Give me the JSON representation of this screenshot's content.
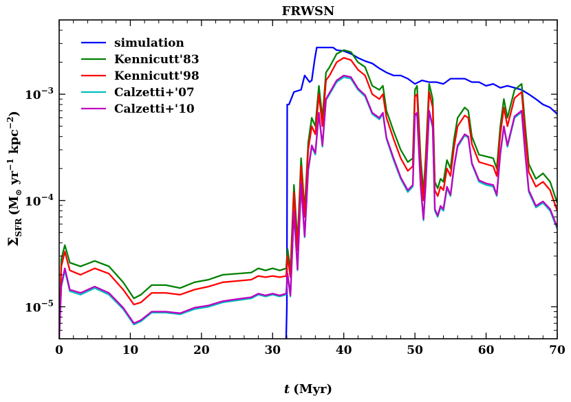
{
  "chart_data": {
    "type": "line",
    "title": "FRWSN",
    "xlabel_var": "t",
    "xlabel_unit": "(Myr)",
    "ylabel": "Σ_SFR (M⊙ yr⁻¹ kpc⁻²)",
    "ylabel_main": "Σ",
    "ylabel_sub": "SFR",
    "ylabel_unit_open": "(M",
    "ylabel_unit_sun": "⊙",
    "ylabel_unit_yr": " yr",
    "ylabel_unit_exp1": "−1",
    "ylabel_unit_kpc": " kpc",
    "ylabel_unit_exp2": "−2",
    "ylabel_unit_close": ")",
    "xscale": "linear",
    "yscale": "log",
    "xlim": [
      0,
      70
    ],
    "ylim": [
      5e-06,
      0.005
    ],
    "x_ticks": [
      0,
      10,
      20,
      30,
      40,
      50,
      60,
      70
    ],
    "x_tick_labels": [
      "0",
      "10",
      "20",
      "30",
      "40",
      "50",
      "60",
      "70"
    ],
    "y_ticks": [
      1e-05,
      0.0001,
      0.001
    ],
    "y_tick_base": "10",
    "y_tick_exps": [
      "−5",
      "−4",
      "−3"
    ],
    "legend_position": "top-left",
    "series": [
      {
        "name": "simulation",
        "color": "#0000ff",
        "x": [
          31.9,
          32.0,
          32.05,
          32.3,
          33.0,
          34.0,
          34.5,
          35.2,
          35.5,
          35.9,
          36.2,
          37.5,
          38.5,
          39.0,
          40.0,
          41.0,
          42.0,
          43.0,
          44.0,
          45.0,
          46.0,
          47.0,
          48.0,
          49.0,
          50.0,
          51.0,
          52.0,
          53.0,
          54.0,
          55.0,
          56.0,
          57.0,
          58.0,
          59.0,
          60.0,
          61.0,
          62.0,
          63.0,
          64.0,
          65.0,
          66.0,
          67.0,
          68.0,
          69.0,
          70.0
        ],
        "y": [
          5e-06,
          1e-05,
          0.0008,
          0.0008,
          0.00105,
          0.0011,
          0.0015,
          0.0013,
          0.00135,
          0.0021,
          0.00275,
          0.00275,
          0.00275,
          0.0026,
          0.00255,
          0.0024,
          0.0022,
          0.00205,
          0.00195,
          0.00175,
          0.0016,
          0.0015,
          0.0015,
          0.0014,
          0.00125,
          0.00135,
          0.0013,
          0.0013,
          0.00125,
          0.0014,
          0.0014,
          0.0014,
          0.0013,
          0.0013,
          0.0012,
          0.00125,
          0.00115,
          0.0012,
          0.00115,
          0.0011,
          0.001,
          0.0009,
          0.0008,
          0.00075,
          0.00065
        ]
      },
      {
        "name": "Kennicutt'83",
        "color": "#008000",
        "x": [
          0.0,
          0.3,
          0.8,
          1.5,
          3.0,
          5.0,
          7.0,
          9.0,
          10.5,
          11.5,
          13.0,
          15.0,
          17.0,
          19.0,
          21.0,
          23.0,
          25.0,
          27.0,
          28.0,
          29.0,
          30.0,
          31.0,
          31.9,
          32.1,
          32.5,
          33.0,
          33.5,
          34.0,
          34.5,
          35.0,
          35.5,
          36.0,
          36.5,
          37.0,
          37.5,
          38.0,
          39.0,
          40.0,
          41.0,
          42.0,
          43.0,
          44.0,
          45.0,
          45.5,
          46.0,
          47.0,
          48.0,
          49.0,
          49.7,
          50.0,
          50.3,
          50.8,
          51.2,
          51.5,
          52.0,
          52.5,
          52.8,
          53.2,
          53.6,
          54.0,
          54.5,
          55.0,
          55.5,
          56.0,
          57.0,
          57.5,
          58.0,
          59.0,
          60.0,
          61.0,
          61.5,
          62.0,
          62.5,
          63.0,
          64.0,
          65.0,
          65.5,
          66.0,
          67.0,
          68.0,
          69.0,
          70.0
        ],
        "y": [
          5e-06,
          2.8e-05,
          3.8e-05,
          2.6e-05,
          2.4e-05,
          2.7e-05,
          2.4e-05,
          1.7e-05,
          1.2e-05,
          1.3e-05,
          1.6e-05,
          1.6e-05,
          1.5e-05,
          1.7e-05,
          1.8e-05,
          2e-05,
          2.05e-05,
          2.1e-05,
          2.3e-05,
          2.2e-05,
          2.3e-05,
          2.2e-05,
          2.3e-05,
          3.5e-05,
          2.2e-05,
          0.00014,
          4e-05,
          0.00025,
          8e-05,
          0.00035,
          0.0006,
          0.0005,
          0.0012,
          0.0006,
          0.0016,
          0.0018,
          0.0024,
          0.0026,
          0.0025,
          0.002,
          0.0018,
          0.0012,
          0.0011,
          0.0012,
          0.0007,
          0.00045,
          0.0003,
          0.00023,
          0.00025,
          0.0011,
          0.0012,
          0.00025,
          0.00012,
          0.00025,
          0.00125,
          0.0009,
          0.00015,
          0.00013,
          0.00016,
          0.00015,
          0.00024,
          0.0002,
          0.00038,
          0.0006,
          0.00075,
          0.0007,
          0.0004,
          0.00027,
          0.00026,
          0.00025,
          0.0002,
          0.0005,
          0.0009,
          0.0006,
          0.0011,
          0.00125,
          0.0005,
          0.00022,
          0.00016,
          0.00018,
          0.00015,
          9.5e-05
        ]
      },
      {
        "name": "Kennicutt'98",
        "color": "#ff0000",
        "x": [
          0.0,
          0.3,
          0.8,
          1.5,
          3.0,
          5.0,
          7.0,
          9.0,
          10.5,
          11.5,
          13.0,
          15.0,
          17.0,
          19.0,
          21.0,
          23.0,
          25.0,
          27.0,
          28.0,
          29.0,
          30.0,
          31.0,
          31.9,
          32.1,
          32.5,
          33.0,
          33.5,
          34.0,
          34.5,
          35.0,
          35.5,
          36.0,
          36.5,
          37.0,
          37.5,
          38.0,
          39.0,
          40.0,
          41.0,
          42.0,
          43.0,
          44.0,
          45.0,
          45.5,
          46.0,
          47.0,
          48.0,
          49.0,
          49.7,
          50.0,
          50.3,
          50.8,
          51.2,
          51.5,
          52.0,
          52.5,
          52.8,
          53.2,
          53.6,
          54.0,
          54.5,
          55.0,
          55.5,
          56.0,
          57.0,
          57.5,
          58.0,
          59.0,
          60.0,
          61.0,
          61.5,
          62.0,
          62.5,
          63.0,
          64.0,
          65.0,
          65.5,
          66.0,
          67.0,
          68.0,
          69.0,
          70.0
        ],
        "y": [
          5e-06,
          2.4e-05,
          3.3e-05,
          2.2e-05,
          2e-05,
          2.3e-05,
          2.05e-05,
          1.45e-05,
          1.05e-05,
          1.1e-05,
          1.35e-05,
          1.35e-05,
          1.3e-05,
          1.45e-05,
          1.55e-05,
          1.7e-05,
          1.75e-05,
          1.8e-05,
          1.95e-05,
          1.9e-05,
          1.95e-05,
          1.9e-05,
          1.95e-05,
          3e-05,
          1.9e-05,
          0.00012,
          3.4e-05,
          0.00021,
          7e-05,
          0.0003,
          0.0005,
          0.00042,
          0.001,
          0.0005,
          0.00135,
          0.0015,
          0.002,
          0.0022,
          0.0021,
          0.0017,
          0.0015,
          0.001,
          0.0009,
          0.001,
          0.0006,
          0.00038,
          0.00025,
          0.00019,
          0.00021,
          0.00095,
          0.001,
          0.00021,
          0.0001,
          0.00021,
          0.00105,
          0.00075,
          0.000125,
          0.00011,
          0.000135,
          0.000125,
          0.0002,
          0.00017,
          0.00032,
          0.0005,
          0.00063,
          0.0006,
          0.00034,
          0.00023,
          0.00022,
          0.00021,
          0.00017,
          0.00042,
          0.00075,
          0.0005,
          0.00092,
          0.00105,
          0.00042,
          0.000185,
          0.000135,
          0.00015,
          0.000125,
          8e-05
        ]
      },
      {
        "name": "Calzetti+'07",
        "color": "#00bfbf",
        "x": [
          0.0,
          0.3,
          0.8,
          1.5,
          3.0,
          5.0,
          7.0,
          9.0,
          10.5,
          11.5,
          13.0,
          15.0,
          17.0,
          19.0,
          21.0,
          23.0,
          25.0,
          27.0,
          28.0,
          29.0,
          30.0,
          31.0,
          31.9,
          32.1,
          32.5,
          33.0,
          33.5,
          34.0,
          34.5,
          35.0,
          35.5,
          36.0,
          36.5,
          37.0,
          37.5,
          38.0,
          39.0,
          40.0,
          41.0,
          42.0,
          43.0,
          44.0,
          45.0,
          45.5,
          46.0,
          47.0,
          48.0,
          49.0,
          49.7,
          50.0,
          50.3,
          50.8,
          51.2,
          51.5,
          52.0,
          52.5,
          52.8,
          53.2,
          53.6,
          54.0,
          54.5,
          55.0,
          55.5,
          56.0,
          57.0,
          57.5,
          58.0,
          59.0,
          60.0,
          61.0,
          61.5,
          62.0,
          62.5,
          63.0,
          64.0,
          65.0,
          65.5,
          66.0,
          67.0,
          68.0,
          69.0,
          70.0
        ],
        "y": [
          5e-06,
          1.55e-05,
          2.2e-05,
          1.4e-05,
          1.3e-05,
          1.5e-05,
          1.3e-05,
          9.5e-06,
          6.8e-06,
          7.3e-06,
          8.8e-06,
          8.8e-06,
          8.5e-06,
          9.5e-06,
          1e-05,
          1.1e-05,
          1.15e-05,
          1.2e-05,
          1.3e-05,
          1.25e-05,
          1.3e-05,
          1.25e-05,
          1.3e-05,
          2e-05,
          1.25e-05,
          7.8e-05,
          2.2e-05,
          0.00014,
          4.5e-05,
          0.00019,
          0.00032,
          0.00027,
          0.00065,
          0.00032,
          0.00088,
          0.001,
          0.0013,
          0.00145,
          0.0014,
          0.0011,
          0.00095,
          0.00065,
          0.00058,
          0.00065,
          0.00038,
          0.00024,
          0.00016,
          0.00012,
          0.000135,
          0.00062,
          0.00065,
          0.000135,
          6.5e-05,
          0.000135,
          0.00068,
          0.00048,
          8e-05,
          7e-05,
          8.6e-05,
          8e-05,
          0.00013,
          0.00011,
          0.000205,
          0.00032,
          0.00041,
          0.00039,
          0.00022,
          0.00015,
          0.00014,
          0.000135,
          0.00011,
          0.00027,
          0.00049,
          0.00032,
          0.0006,
          0.00068,
          0.00027,
          0.00012,
          8.6e-05,
          9.5e-05,
          8e-05,
          5.4e-05
        ]
      },
      {
        "name": "Calzetti+'10",
        "color": "#bf00bf",
        "x": [
          0.0,
          0.3,
          0.8,
          1.5,
          3.0,
          5.0,
          7.0,
          9.0,
          10.5,
          11.5,
          13.0,
          15.0,
          17.0,
          19.0,
          21.0,
          23.0,
          25.0,
          27.0,
          28.0,
          29.0,
          30.0,
          31.0,
          31.9,
          32.1,
          32.5,
          33.0,
          33.5,
          34.0,
          34.5,
          35.0,
          35.5,
          36.0,
          36.5,
          37.0,
          37.5,
          38.0,
          39.0,
          40.0,
          41.0,
          42.0,
          43.0,
          44.0,
          45.0,
          45.5,
          46.0,
          47.0,
          48.0,
          49.0,
          49.7,
          50.0,
          50.3,
          50.8,
          51.2,
          51.5,
          52.0,
          52.5,
          52.8,
          53.2,
          53.6,
          54.0,
          54.5,
          55.0,
          55.5,
          56.0,
          57.0,
          57.5,
          58.0,
          59.0,
          60.0,
          61.0,
          61.5,
          62.0,
          62.5,
          63.0,
          64.0,
          65.0,
          65.5,
          66.0,
          67.0,
          68.0,
          69.0,
          70.0
        ],
        "y": [
          5e-06,
          1.6e-05,
          2.3e-05,
          1.45e-05,
          1.35e-05,
          1.55e-05,
          1.35e-05,
          9.8e-06,
          7e-06,
          7.5e-06,
          9e-06,
          9e-06,
          8.7e-06,
          9.8e-06,
          1.03e-05,
          1.13e-05,
          1.18e-05,
          1.23e-05,
          1.33e-05,
          1.28e-05,
          1.33e-05,
          1.28e-05,
          1.33e-05,
          2.05e-05,
          1.28e-05,
          8e-05,
          2.25e-05,
          0.000145,
          4.6e-05,
          0.000195,
          0.00033,
          0.00028,
          0.00067,
          0.00033,
          0.0009,
          0.00103,
          0.00135,
          0.0015,
          0.00145,
          0.00113,
          0.00098,
          0.00067,
          0.0006,
          0.00067,
          0.00039,
          0.00025,
          0.000165,
          0.000125,
          0.00014,
          0.00064,
          0.00067,
          0.00014,
          6.7e-05,
          0.00014,
          0.0007,
          0.0005,
          8.3e-05,
          7.2e-05,
          8.9e-05,
          8.3e-05,
          0.000135,
          0.000113,
          0.00021,
          0.00033,
          0.00042,
          0.0004,
          0.000225,
          0.000155,
          0.000145,
          0.00014,
          0.000113,
          0.00028,
          0.0005,
          0.00033,
          0.00062,
          0.0007,
          0.00028,
          0.000125,
          8.9e-05,
          9.8e-05,
          8.3e-05,
          5.6e-05
        ]
      }
    ]
  }
}
